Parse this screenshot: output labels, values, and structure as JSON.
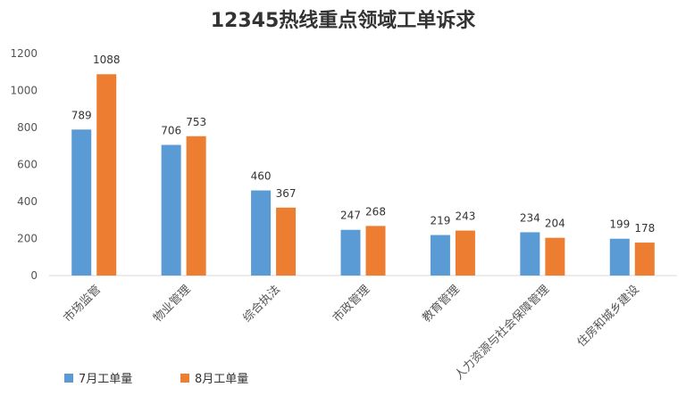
{
  "chart_data": {
    "type": "bar",
    "title": "12345热线重点领域工单诉求",
    "categories": [
      "市场监管",
      "物业管理",
      "综合执法",
      "市政管理",
      "教育管理",
      "人力资源与社会保障管理",
      "住房和城乡建设"
    ],
    "series": [
      {
        "name": "7月工单量",
        "values": [
          789,
          706,
          460,
          247,
          219,
          234,
          199
        ],
        "color": "#5B9BD5"
      },
      {
        "name": "8月工单量",
        "values": [
          1088,
          753,
          367,
          268,
          243,
          204,
          178
        ],
        "color": "#ED7D31"
      }
    ],
    "ylim": [
      0,
      1200
    ],
    "yticks": [
      0,
      200,
      400,
      600,
      800,
      1000,
      1200
    ],
    "xlabel": "",
    "ylabel": "",
    "grid": false,
    "legend": "bottom-left"
  }
}
